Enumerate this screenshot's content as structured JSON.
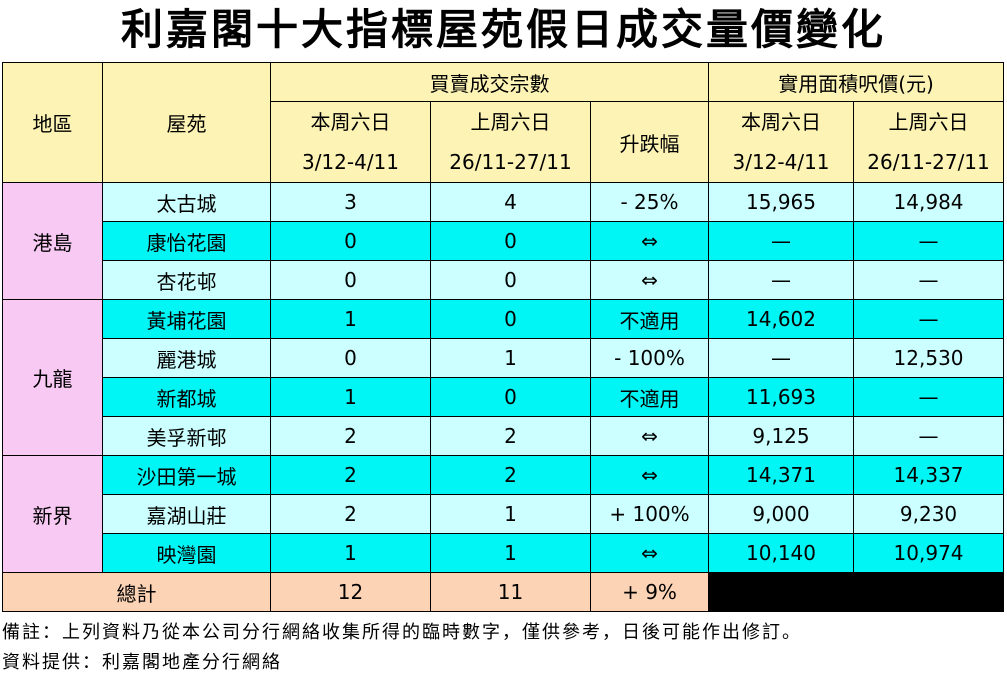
{
  "title": "利嘉閣十大指標屋苑假日成交量價變化",
  "table": {
    "header": {
      "region": "地區",
      "estate": "屋苑",
      "transactions": "買賣成交宗數",
      "price": "實用面積呎價(元)",
      "this_week": "本周六日",
      "this_week_dates": "3/12-4/11",
      "last_week": "上周六日",
      "last_week_dates": "26/11-27/11",
      "change": "升跌幅"
    },
    "groups": [
      {
        "region": "港島",
        "rows": [
          [
            "太古城",
            "3",
            "4",
            "- 25%",
            "15,965",
            "14,984"
          ],
          [
            "康怡花園",
            "0",
            "0",
            "⇔",
            "—",
            "—"
          ],
          [
            "杏花邨",
            "0",
            "0",
            "⇔",
            "—",
            "—"
          ]
        ]
      },
      {
        "region": "九龍",
        "rows": [
          [
            "黃埔花園",
            "1",
            "0",
            "不適用",
            "14,602",
            "—"
          ],
          [
            "麗港城",
            "0",
            "1",
            "- 100%",
            "—",
            "12,530"
          ],
          [
            "新都城",
            "1",
            "0",
            "不適用",
            "11,693",
            "—"
          ],
          [
            "美孚新邨",
            "2",
            "2",
            "⇔",
            "9,125",
            "—"
          ]
        ]
      },
      {
        "region": "新界",
        "rows": [
          [
            "沙田第一城",
            "2",
            "2",
            "⇔",
            "14,371",
            "14,337"
          ],
          [
            "嘉湖山莊",
            "2",
            "1",
            "+ 100%",
            "9,000",
            "9,230"
          ],
          [
            "映灣園",
            "1",
            "1",
            "⇔",
            "10,140",
            "10,974"
          ]
        ]
      }
    ],
    "total": {
      "label": "總計",
      "values": [
        "12",
        "11",
        "+ 9%"
      ]
    }
  },
  "notes": [
    "備註：上列資料乃從本公司分行網絡收集所得的臨時數字，僅供參考，日後可能作出修訂。",
    "資料提供：利嘉閣地產分行網絡"
  ]
}
